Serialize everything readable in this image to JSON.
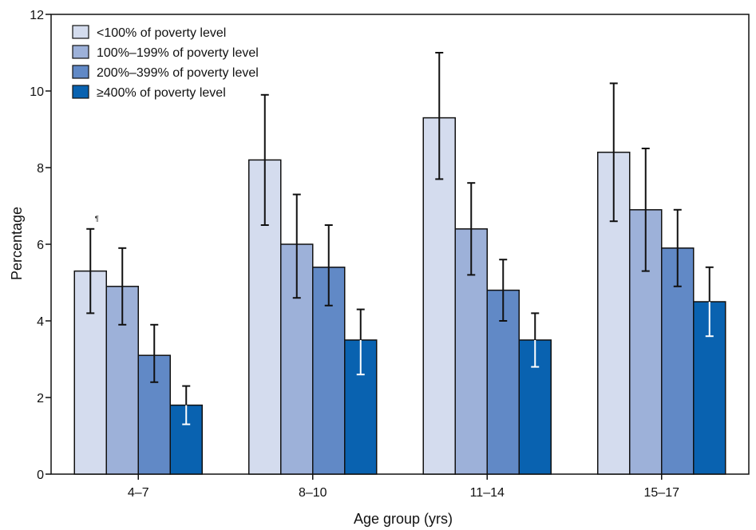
{
  "chart_data": {
    "type": "bar",
    "xlabel": "Age group (yrs)",
    "ylabel": "Percentage",
    "ylim": [
      0,
      12
    ],
    "yticks": [
      0,
      2,
      4,
      6,
      8,
      10,
      12
    ],
    "grid": false,
    "legend_position": "top-left",
    "categories": [
      "4–7",
      "8–10",
      "11–14",
      "15–17"
    ],
    "series": [
      {
        "name": "<100% of poverty level",
        "color": "#d4dcee",
        "values": [
          5.3,
          8.2,
          9.3,
          8.4
        ],
        "ci_low": [
          4.2,
          6.5,
          7.7,
          6.6
        ],
        "ci_high": [
          6.4,
          9.9,
          11.0,
          10.2
        ]
      },
      {
        "name": "100%–199% of poverty level",
        "color": "#9db1d9",
        "values": [
          4.9,
          6.0,
          6.4,
          6.9
        ],
        "ci_low": [
          3.9,
          4.6,
          5.2,
          5.3
        ],
        "ci_high": [
          5.9,
          7.3,
          7.6,
          8.5
        ]
      },
      {
        "name": "200%–399% of poverty level",
        "color": "#6189c6",
        "values": [
          3.1,
          5.4,
          4.8,
          5.9
        ],
        "ci_low": [
          2.4,
          4.4,
          4.0,
          4.9
        ],
        "ci_high": [
          3.9,
          6.5,
          5.6,
          6.9
        ]
      },
      {
        "name": "≥400% of poverty level",
        "color": "#0962b0",
        "values": [
          1.8,
          3.5,
          3.5,
          4.5
        ],
        "ci_low": [
          1.3,
          2.6,
          2.8,
          3.6
        ],
        "ci_high": [
          2.3,
          4.3,
          4.2,
          5.4
        ]
      }
    ],
    "annotations": [
      {
        "text": "¶",
        "category_index": 0,
        "series_index": 0
      }
    ]
  }
}
